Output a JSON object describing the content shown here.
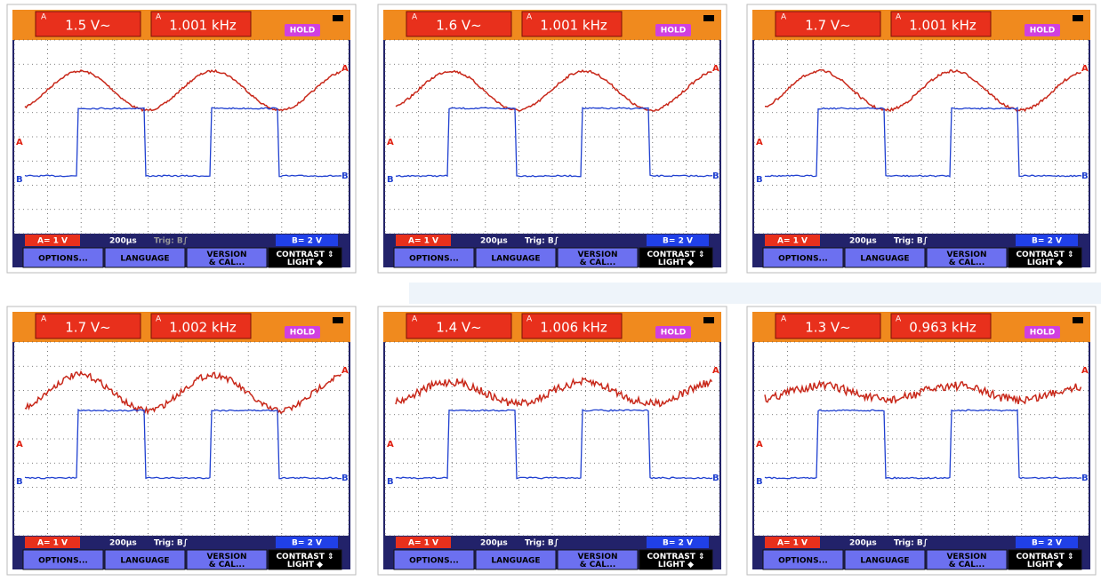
{
  "channel_a": "A",
  "channel_b": "B",
  "panels": [
    {
      "reading": "1.5 V~",
      "frequency": "1.001 kHz",
      "hold": "HOLD",
      "scale_a": "A= 1 V",
      "timebase": "200µs",
      "trigger": "Trig: B∫",
      "scale_b": "B= 2 V",
      "menu": [
        "OPTIONS...",
        "LANGUAGE",
        "VERSION & CAL...",
        "CONTRAST ⇕ LIGHT ◆"
      ]
    },
    {
      "reading": "1.6 V~",
      "frequency": "1.001 kHz",
      "hold": "HOLD",
      "scale_a": "A= 1 V",
      "timebase": "200µs",
      "trigger": "Trig: B∫",
      "scale_b": "B= 2 V",
      "menu": [
        "OPTIONS...",
        "LANGUAGE",
        "VERSION & CAL...",
        "CONTRAST ⇕ LIGHT ◆"
      ]
    },
    {
      "reading": "1.7 V~",
      "frequency": "1.001 kHz",
      "hold": "HOLD",
      "scale_a": "A= 1 V",
      "timebase": "200µs",
      "trigger": "Trig: B∫",
      "scale_b": "B= 2 V",
      "menu": [
        "OPTIONS...",
        "LANGUAGE",
        "VERSION & CAL...",
        "CONTRAST ⇕ LIGHT ◆"
      ]
    },
    {
      "reading": "1.7 V~",
      "frequency": "1.002 kHz",
      "hold": "HOLD",
      "scale_a": "A= 1 V",
      "timebase": "200µs",
      "trigger": "Trig: B∫",
      "scale_b": "B= 2 V",
      "menu": [
        "OPTIONS...",
        "LANGUAGE",
        "VERSION & CAL...",
        "CONTRAST ⇕ LIGHT ◆"
      ]
    },
    {
      "reading": "1.4 V~",
      "frequency": "1.006 kHz",
      "hold": "HOLD",
      "scale_a": "A= 1 V",
      "timebase": "200µs",
      "trigger": "Trig: B∫",
      "scale_b": "B= 2 V",
      "menu": [
        "OPTIONS...",
        "LANGUAGE",
        "VERSION & CAL...",
        "CONTRAST ⇕ LIGHT ◆"
      ]
    },
    {
      "reading": "1.3 V~",
      "frequency": "0.963 kHz",
      "hold": "HOLD",
      "scale_a": "A= 1 V",
      "timebase": "200µs",
      "trigger": "Trig: B∫",
      "scale_b": "B= 2 V",
      "menu": [
        "OPTIONS...",
        "LANGUAGE",
        "VERSION & CAL...",
        "CONTRAST ⇕ LIGHT ◆"
      ]
    }
  ]
}
